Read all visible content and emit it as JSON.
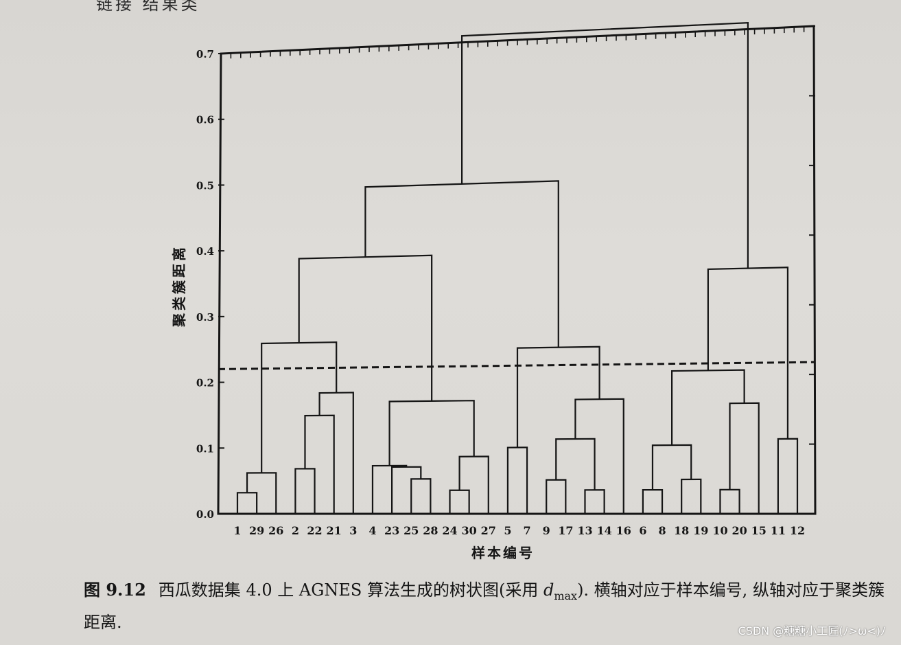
{
  "page": {
    "top_fragment": "链接 结果类",
    "watermark": "CSDN @糖糖小工匠(ﾉ>ω<)ﾉ"
  },
  "caption": {
    "figure_number": "图 9.12",
    "text_before": "西瓜数据集 4.0 上 AGNES 算法生成的树状图(采用 ",
    "dmax_symbol": "d",
    "dmax_sub": "max",
    "text_after": "). 横轴对应于样本编号, 纵轴对应于聚类簇距离."
  },
  "chart_data": {
    "type": "dendrogram",
    "xlabel": "样本编号",
    "ylabel": "聚类簇距离",
    "ylim": [
      0,
      0.7
    ],
    "yticks": [
      0,
      0.1,
      0.2,
      0.3,
      0.4,
      0.5,
      0.6,
      0.7
    ],
    "ytick_labels": [
      "0.0",
      "0.1",
      "0.2",
      "0.3",
      "0.4",
      "0.5",
      "0.6",
      "0.7"
    ],
    "leaf_order": [
      "1",
      "29",
      "26",
      "2",
      "22",
      "21",
      "3",
      "4",
      "23",
      "25",
      "28",
      "24",
      "30",
      "27",
      "5",
      "7",
      "9",
      "17",
      "13",
      "14",
      "16",
      "6",
      "8",
      "18",
      "19",
      "10",
      "20",
      "15",
      "11",
      "12"
    ],
    "cut_height": 0.22,
    "cut_style": "dashed",
    "merges": [
      {
        "id": "m1",
        "left": "1",
        "right": "29",
        "height": 0.032
      },
      {
        "id": "m2",
        "left": "m1",
        "right": "26",
        "height": 0.062
      },
      {
        "id": "m3",
        "left": "2",
        "right": "22",
        "height": 0.068
      },
      {
        "id": "m4",
        "left": "m3",
        "right": "21",
        "height": 0.148
      },
      {
        "id": "m5",
        "left": "m4",
        "right": "3",
        "height": 0.182
      },
      {
        "id": "m6",
        "left": "m2",
        "right": "m5",
        "height": 0.258
      },
      {
        "id": "m7",
        "left": "25",
        "right": "28",
        "height": 0.052
      },
      {
        "id": "m8",
        "left": "23",
        "right": "m7",
        "height": 0.07
      },
      {
        "id": "m9",
        "left": "4",
        "right": "m8",
        "height": 0.072
      },
      {
        "id": "m10",
        "left": "24",
        "right": "30",
        "height": 0.035
      },
      {
        "id": "m11",
        "left": "m10",
        "right": "27",
        "height": 0.085
      },
      {
        "id": "m12",
        "left": "m9",
        "right": "m11",
        "height": 0.168
      },
      {
        "id": "m13",
        "left": "m6",
        "right": "m12",
        "height": 0.385
      },
      {
        "id": "m14",
        "left": "5",
        "right": "7",
        "height": 0.098
      },
      {
        "id": "m15",
        "left": "9",
        "right": "17",
        "height": 0.05
      },
      {
        "id": "m16",
        "left": "13",
        "right": "14",
        "height": 0.035
      },
      {
        "id": "m17",
        "left": "m15",
        "right": "m16",
        "height": 0.11
      },
      {
        "id": "m18",
        "left": "m17",
        "right": "16",
        "height": 0.168
      },
      {
        "id": "m19",
        "left": "m14",
        "right": "m18",
        "height": 0.245
      },
      {
        "id": "m20",
        "left": "m13",
        "right": "m19",
        "height": 0.49
      },
      {
        "id": "m21",
        "left": "6",
        "right": "8",
        "height": 0.035
      },
      {
        "id": "m22",
        "left": "18",
        "right": "19",
        "height": 0.05
      },
      {
        "id": "m23",
        "left": "m21",
        "right": "m22",
        "height": 0.1
      },
      {
        "id": "m24",
        "left": "10",
        "right": "20",
        "height": 0.035
      },
      {
        "id": "m25",
        "left": "m24",
        "right": "15",
        "height": 0.16
      },
      {
        "id": "m26",
        "left": "m23",
        "right": "m25",
        "height": 0.208
      },
      {
        "id": "m27",
        "left": "11",
        "right": "12",
        "height": 0.108
      },
      {
        "id": "m28",
        "left": "m26",
        "right": "m27",
        "height": 0.355
      },
      {
        "id": "m29",
        "left": "m20",
        "right": "m28",
        "height": 0.71
      }
    ]
  }
}
